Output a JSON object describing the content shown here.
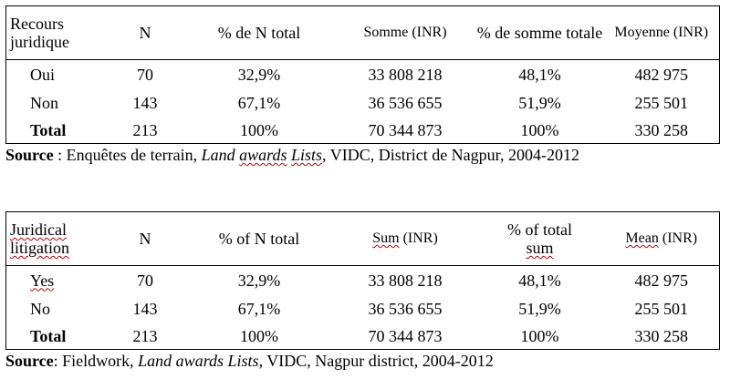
{
  "table_fr": {
    "headers": {
      "col1": "Recours juridique",
      "col2": "N",
      "col3": "% de N total",
      "col4": "Somme (INR)",
      "col5": "% de somme totale",
      "col6": "Moyenne (INR)"
    },
    "rows": [
      {
        "label": "Oui",
        "n": "70",
        "pct_n": "32,9%",
        "sum": "33 808 218",
        "pct_sum": "48,1%",
        "mean": "482 975"
      },
      {
        "label": "Non",
        "n": "143",
        "pct_n": "67,1%",
        "sum": "36 536 655",
        "pct_sum": "51,9%",
        "mean": "255 501"
      },
      {
        "label": "Total",
        "n": "213",
        "pct_n": "100%",
        "sum": "70 344 873",
        "pct_sum": "100%",
        "mean": "330 258"
      }
    ],
    "source": {
      "label": "Source",
      "part1": " : Enquêtes de terrain, ",
      "italic_a": "Land ",
      "italic_b": "awards",
      "italic_c": " ",
      "italic_d": "Lists",
      "part2": ", VIDC, District de Nagpur, 2004-2012"
    }
  },
  "table_en": {
    "headers": {
      "col1_line1": "Juridical",
      "col1_line2": "litigation",
      "col2": "N",
      "col3": "% of N total",
      "col4_a": "Sum",
      "col4_b": " (INR)",
      "col5_line1": "% of total",
      "col5_line2": "sum",
      "col6_a": "Mean",
      "col6_b": " (INR)"
    },
    "rows": [
      {
        "label": "Yes",
        "n": "70",
        "pct_n": "32,9%",
        "sum": "33 808 218",
        "pct_sum": "48,1%",
        "mean": "482 975"
      },
      {
        "label": "No",
        "n": "143",
        "pct_n": "67,1%",
        "sum": "36 536 655",
        "pct_sum": "51,9%",
        "mean": "255 501"
      },
      {
        "label": "Total",
        "n": "213",
        "pct_n": "100%",
        "sum": "70 344 873",
        "pct_sum": "100%",
        "mean": "330 258"
      }
    ],
    "source": {
      "label": "Source",
      "part1": ": Fieldwork, ",
      "italic": "Land awards Lists",
      "part2": ", VIDC, Nagpur district, 2004-2012"
    }
  }
}
